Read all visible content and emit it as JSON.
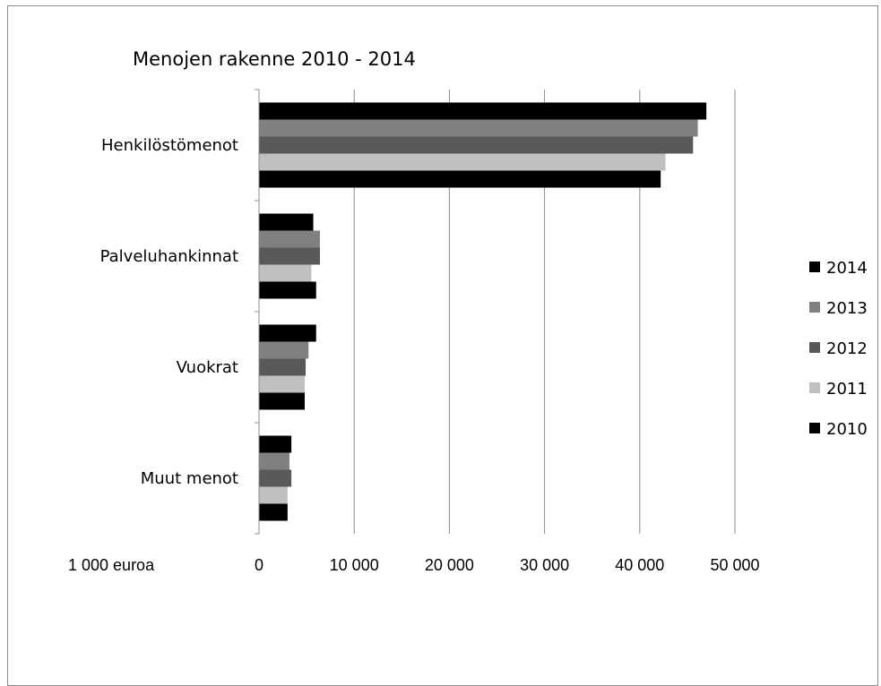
{
  "chart_data": {
    "type": "bar",
    "orientation": "horizontal",
    "title": "Menojen rakenne 2010 - 2014",
    "unit_label": "1 000 euroa",
    "categories": [
      "Henkilöstömenot",
      "Palveluhankinnat",
      "Vuokrat",
      "Muut menot"
    ],
    "series": [
      {
        "name": "2014",
        "color": "#000000",
        "values": [
          47000,
          5700,
          6000,
          3400
        ]
      },
      {
        "name": "2013",
        "color": "#808080",
        "values": [
          46100,
          6400,
          5200,
          3200
        ]
      },
      {
        "name": "2012",
        "color": "#595959",
        "values": [
          45600,
          6400,
          4900,
          3400
        ]
      },
      {
        "name": "2011",
        "color": "#c0c0c0",
        "values": [
          42700,
          5500,
          4800,
          3000
        ]
      },
      {
        "name": "2010",
        "color": "#000000",
        "values": [
          42200,
          6000,
          4800,
          3000
        ]
      }
    ],
    "x_ticks": [
      "0",
      "10 000",
      "20 000",
      "30 000",
      "40 000",
      "50 000"
    ],
    "xlim": [
      0,
      50000
    ],
    "grid": true,
    "legend_position": "right"
  }
}
